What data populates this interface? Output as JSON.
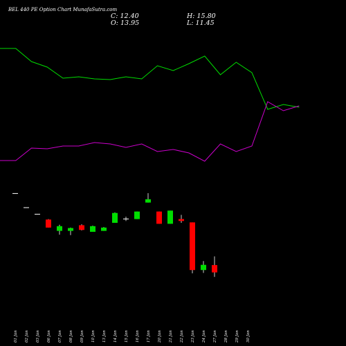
{
  "header": {
    "title": "BEL 440 PE Option Chart MunafaSutra.com",
    "close": "C: 12.40",
    "open": "O: 13.95",
    "high": "H: 15.80",
    "low": "L: 11.45"
  },
  "colors": {
    "background": "#000000",
    "up": "#00dd00",
    "down": "#ff0000",
    "flat": "#ffffff",
    "green_line": "#00dd00",
    "magenta_line": "#cc00cc"
  },
  "chart_data": {
    "type": "candlestick",
    "title": "BEL 440 PE Option Chart MunafaSutra.com",
    "x": [
      "01 Jan",
      "02 Jan",
      "03 Jan",
      "06 Jan",
      "07 Jan",
      "08 Jan",
      "09 Jan",
      "10 Jan",
      "13 Jan",
      "14 Jan",
      "15 Jan",
      "16 Jan",
      "17 Jan",
      "20 Jan",
      "21 Jan",
      "22 Jan",
      "23 Jan",
      "24 Jan",
      "27 Jan",
      "28 Jan",
      "29 Jan",
      "30 Jan"
    ],
    "candles": [
      {
        "date": "01 Jan",
        "open": 29.2,
        "high": 29.2,
        "low": 29.2,
        "close": 29.2
      },
      {
        "date": "02 Jan",
        "open": 26.2,
        "high": 26.2,
        "low": 26.2,
        "close": 26.2
      },
      {
        "date": "03 Jan",
        "open": 24.8,
        "high": 24.8,
        "low": 24.8,
        "close": 24.8
      },
      {
        "date": "06 Jan",
        "open": 23.6,
        "high": 23.7,
        "low": 21.9,
        "close": 21.9
      },
      {
        "date": "07 Jan",
        "open": 21.2,
        "high": 22.5,
        "low": 20.4,
        "close": 22.2
      },
      {
        "date": "08 Jan",
        "open": 21.2,
        "high": 21.9,
        "low": 20.3,
        "close": 21.8
      },
      {
        "date": "09 Jan",
        "open": 22.4,
        "high": 22.6,
        "low": 21.3,
        "close": 21.4
      },
      {
        "date": "10 Jan",
        "open": 21.0,
        "high": 22.3,
        "low": 21.0,
        "close": 22.2
      },
      {
        "date": "13 Jan",
        "open": 21.2,
        "high": 22.0,
        "low": 21.2,
        "close": 21.9
      },
      {
        "date": "14 Jan",
        "open": 22.9,
        "high": 25.1,
        "low": 22.9,
        "close": 25.0
      },
      {
        "date": "15 Jan",
        "open": 23.8,
        "high": 24.2,
        "low": 23.3,
        "close": 23.8
      },
      {
        "date": "16 Jan",
        "open": 23.7,
        "high": 25.3,
        "low": 23.7,
        "close": 25.3
      },
      {
        "date": "17 Jan",
        "open": 27.2,
        "high": 29.2,
        "low": 27.2,
        "close": 27.9
      },
      {
        "date": "20 Jan",
        "open": 25.3,
        "high": 25.3,
        "low": 22.7,
        "close": 22.7
      },
      {
        "date": "21 Jan",
        "open": 22.7,
        "high": 25.5,
        "low": 22.7,
        "close": 25.5
      },
      {
        "date": "22 Jan",
        "open": 23.7,
        "high": 24.6,
        "low": 22.9,
        "close": 23.3
      },
      {
        "date": "23 Jan",
        "open": 23.0,
        "high": 23.0,
        "low": 12.2,
        "close": 12.9
      },
      {
        "date": "24 Jan",
        "open": 12.9,
        "high": 14.8,
        "low": 12.3,
        "close": 14.0
      },
      {
        "date": "27 Jan",
        "open": 13.95,
        "high": 15.8,
        "low": 11.45,
        "close": 12.4
      },
      {
        "date": "28 Jan",
        "open": null,
        "high": null,
        "low": null,
        "close": null
      },
      {
        "date": "29 Jan",
        "open": null,
        "high": null,
        "low": null,
        "close": null
      },
      {
        "date": "30 Jan",
        "open": null,
        "high": null,
        "low": null,
        "close": null
      }
    ],
    "overlay_green": [
      70,
      70,
      89,
      97,
      113,
      111,
      114,
      115,
      111,
      114,
      95,
      102,
      92,
      81,
      108,
      90,
      105,
      158,
      151,
      155
    ],
    "overlay_magenta": [
      232,
      232,
      214,
      215,
      211,
      211,
      206,
      208,
      213,
      208,
      219,
      216,
      221,
      233,
      208,
      219,
      211,
      147,
      160,
      153
    ],
    "legend": "none",
    "grid": false,
    "price_range": [
      10,
      32
    ]
  }
}
